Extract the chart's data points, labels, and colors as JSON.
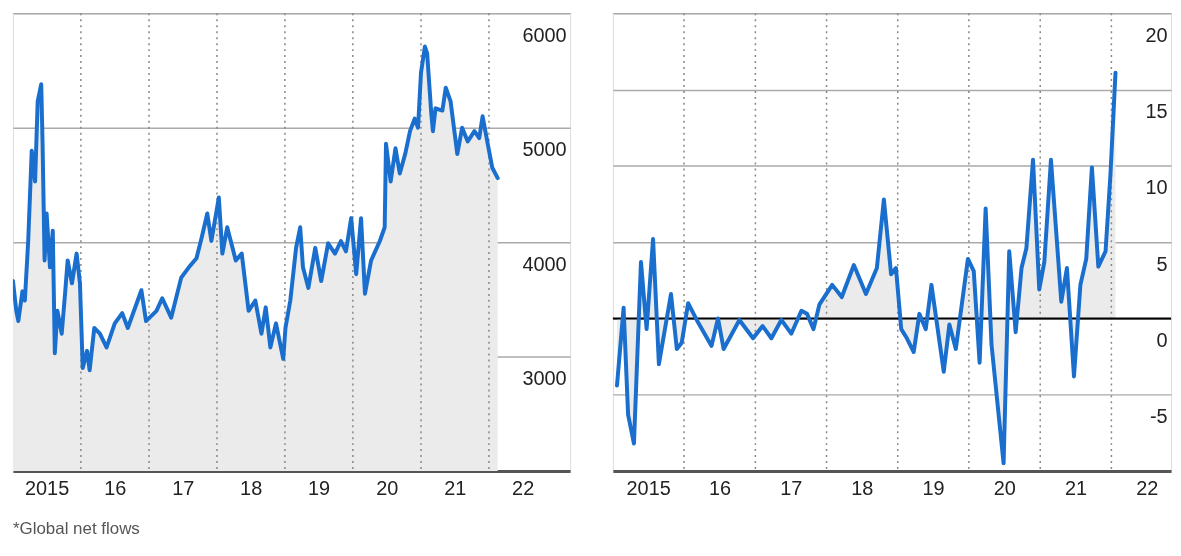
{
  "chart_data": [
    {
      "type": "area",
      "annotations": [
        "*Global net flows"
      ],
      "x": [
        "2015-01-01",
        "2015-01-19",
        "2015-01-30",
        "2015-02-21",
        "2015-03-06",
        "2015-03-24",
        "2015-04-12",
        "2015-04-30",
        "2015-05-14",
        "2015-06-02",
        "2015-06-09",
        "2015-06-20",
        "2015-07-01",
        "2015-07-19",
        "2015-08-03",
        "2015-08-14",
        "2015-08-28",
        "2015-09-20",
        "2015-10-08",
        "2015-10-22",
        "2015-11-14",
        "2015-12-09",
        "2015-12-27",
        "2016-01-11",
        "2016-02-03",
        "2016-02-17",
        "2016-03-13",
        "2016-04-12",
        "2016-05-18",
        "2016-07-01",
        "2016-08-10",
        "2016-09-09",
        "2016-11-21",
        "2016-12-16",
        "2017-02-10",
        "2017-03-13",
        "2017-04-30",
        "2017-06-23",
        "2017-08-03",
        "2017-09-13",
        "2017-10-11",
        "2017-11-10",
        "2017-12-02",
        "2018-01-11",
        "2018-01-30",
        "2018-02-25",
        "2018-04-12",
        "2018-05-14",
        "2018-06-20",
        "2018-07-26",
        "2018-08-28",
        "2018-09-20",
        "2018-10-15",
        "2018-11-14",
        "2018-12-23",
        "2019-01-04",
        "2019-01-30",
        "2019-03-02",
        "2019-03-24",
        "2019-04-08",
        "2019-05-07",
        "2019-06-13",
        "2019-07-15",
        "2019-08-21",
        "2019-09-27",
        "2019-10-29",
        "2019-11-25",
        "2019-12-23",
        "2020-01-19",
        "2020-02-14",
        "2020-03-06",
        "2020-04-08",
        "2020-05-25",
        "2020-06-20",
        "2020-06-27",
        "2020-07-22",
        "2020-08-17",
        "2020-09-09",
        "2020-10-08",
        "2020-11-03",
        "2020-11-28",
        "2020-12-16",
        "2021-01-01",
        "2021-01-22",
        "2021-02-03",
        "2021-02-25",
        "2021-03-06",
        "2021-03-20",
        "2021-04-26",
        "2021-05-14",
        "2021-06-09",
        "2021-07-15",
        "2021-08-10",
        "2021-09-09",
        "2021-10-15",
        "2021-11-10",
        "2021-11-28",
        "2021-12-23",
        "2022-01-19",
        "2022-02-17"
      ],
      "series": [
        {
          "color": "#1a6fce",
          "values": [
            3660,
            3400,
            3310,
            3570,
            3490,
            4010,
            4800,
            4530,
            5230,
            5380,
            4880,
            3840,
            4250,
            3780,
            4100,
            3030,
            3400,
            3200,
            3550,
            3840,
            3640,
            3900,
            3640,
            2900,
            3050,
            2880,
            3250,
            3200,
            3080,
            3290,
            3380,
            3250,
            3580,
            3310,
            3400,
            3510,
            3340,
            3690,
            3780,
            3860,
            4040,
            4250,
            4010,
            4390,
            3900,
            4130,
            3840,
            3900,
            3400,
            3490,
            3200,
            3430,
            3080,
            3290,
            2980,
            3250,
            3490,
            3950,
            4130,
            3780,
            3600,
            3950,
            3660,
            3990,
            3900,
            4010,
            3920,
            4210,
            3720,
            4210,
            3550,
            3840,
            4010,
            4130,
            4860,
            4530,
            4820,
            4600,
            4770,
            4970,
            5080,
            5000,
            5480,
            5710,
            5650,
            5130,
            4970,
            5170,
            5150,
            5350,
            5230,
            4770,
            5000,
            4880,
            4970,
            4910,
            5100,
            4880,
            4650,
            4560
          ]
        }
      ],
      "xlim": [
        "2015-01-01",
        "2023-03-13"
      ],
      "xticks": [
        {
          "value": "2015-07-01",
          "label": "2015"
        },
        {
          "value": "2016-07-01",
          "label": "16"
        },
        {
          "value": "2017-07-01",
          "label": "17"
        },
        {
          "value": "2018-07-01",
          "label": "18"
        },
        {
          "value": "2019-07-01",
          "label": "19"
        },
        {
          "value": "2020-07-01",
          "label": "20"
        },
        {
          "value": "2021-07-01",
          "label": "21"
        },
        {
          "value": "2022-07-01",
          "label": "22"
        }
      ],
      "ylim": [
        2000,
        6000
      ],
      "yticks": [
        3000,
        4000,
        5000,
        6000
      ],
      "grid": "y",
      "ref_lines": [
        {
          "axis": "x",
          "value": "2016-01-01",
          "color": "#888888",
          "line_style": "dotted"
        },
        {
          "axis": "x",
          "value": "2017-01-01",
          "color": "#888888",
          "line_style": "dotted"
        },
        {
          "axis": "x",
          "value": "2018-01-01",
          "color": "#888888",
          "line_style": "dotted"
        },
        {
          "axis": "x",
          "value": "2019-01-01",
          "color": "#888888",
          "line_style": "dotted"
        },
        {
          "axis": "x",
          "value": "2020-01-01",
          "color": "#888888",
          "line_style": "dotted"
        },
        {
          "axis": "x",
          "value": "2021-01-01",
          "color": "#888888",
          "line_style": "dotted"
        },
        {
          "axis": "x",
          "value": "2022-01-01",
          "color": "#888888",
          "line_style": "dotted"
        }
      ]
    },
    {
      "type": "area",
      "x": [
        "2015-01-22",
        "2015-02-25",
        "2015-03-20",
        "2015-04-19",
        "2015-05-25",
        "2015-06-23",
        "2015-07-26",
        "2015-08-25",
        "2015-10-26",
        "2015-11-25",
        "2015-12-20",
        "2016-01-22",
        "2016-03-06",
        "2016-05-21",
        "2016-06-23",
        "2016-07-22",
        "2016-10-11",
        "2016-12-20",
        "2017-02-07",
        "2017-03-24",
        "2017-05-14",
        "2017-07-04",
        "2017-08-25",
        "2017-09-23",
        "2017-10-26",
        "2017-11-25",
        "2018-01-30",
        "2018-03-20",
        "2018-05-21",
        "2018-07-22",
        "2018-09-16",
        "2018-10-22",
        "2018-11-28",
        "2018-12-23",
        "2019-01-19",
        "2019-02-17",
        "2019-03-24",
        "2019-04-22",
        "2019-05-25",
        "2019-06-23",
        "2019-08-25",
        "2019-09-23",
        "2019-10-26",
        "2019-12-27",
        "2020-01-26",
        "2020-02-25",
        "2020-03-27",
        "2020-04-26",
        "2020-06-27",
        "2020-07-26",
        "2020-08-28",
        "2020-09-27",
        "2020-10-22",
        "2020-11-25",
        "2020-12-27",
        "2021-01-22",
        "2021-02-25",
        "2021-04-19",
        "2021-05-18",
        "2021-06-23",
        "2021-07-26",
        "2021-08-25",
        "2021-09-23",
        "2021-10-26",
        "2021-12-02",
        "2021-12-27",
        "2022-01-22"
      ],
      "series": [
        {
          "color": "#1a6fce",
          "values": [
            -4.4,
            0.7,
            -6.3,
            -8.2,
            3.7,
            -0.7,
            5.2,
            -3.0,
            1.6,
            -2.0,
            -1.6,
            1.0,
            -0.1,
            -1.8,
            0.0,
            -2.0,
            -0.1,
            -1.3,
            -0.5,
            -1.3,
            -0.1,
            -1.0,
            0.5,
            0.3,
            -0.7,
            0.9,
            2.2,
            1.4,
            3.5,
            1.6,
            3.3,
            7.8,
            2.9,
            3.3,
            -0.7,
            -1.3,
            -2.2,
            0.3,
            -0.7,
            2.2,
            -3.5,
            -0.4,
            -2.0,
            3.9,
            3.1,
            -2.9,
            7.2,
            -1.7,
            -9.5,
            4.4,
            -0.9,
            3.3,
            4.6,
            10.4,
            1.9,
            3.7,
            10.4,
            1.1,
            3.3,
            -3.8,
            2.2,
            3.9,
            9.9,
            3.4,
            4.4,
            9.4,
            16.1
          ]
        }
      ],
      "xlim": [
        "2015-01-01",
        "2022-11-03"
      ],
      "xticks": [
        {
          "value": "2015-07-01",
          "label": "2015"
        },
        {
          "value": "2016-07-01",
          "label": "16"
        },
        {
          "value": "2017-07-01",
          "label": "17"
        },
        {
          "value": "2018-07-01",
          "label": "18"
        },
        {
          "value": "2019-07-01",
          "label": "19"
        },
        {
          "value": "2020-07-01",
          "label": "20"
        },
        {
          "value": "2021-07-01",
          "label": "21"
        },
        {
          "value": "2022-07-01",
          "label": "22"
        }
      ],
      "ylim": [
        -10,
        20
      ],
      "yticks": [
        -5,
        0,
        5,
        10,
        15,
        20
      ],
      "grid": "y",
      "ref_lines": [
        {
          "axis": "x",
          "value": "2016-01-01",
          "color": "#888888",
          "line_style": "dotted"
        },
        {
          "axis": "x",
          "value": "2017-01-01",
          "color": "#888888",
          "line_style": "dotted"
        },
        {
          "axis": "x",
          "value": "2018-01-01",
          "color": "#888888",
          "line_style": "dotted"
        },
        {
          "axis": "x",
          "value": "2019-01-01",
          "color": "#888888",
          "line_style": "dotted"
        },
        {
          "axis": "x",
          "value": "2020-01-01",
          "color": "#888888",
          "line_style": "dotted"
        },
        {
          "axis": "x",
          "value": "2021-01-01",
          "color": "#888888",
          "line_style": "dotted"
        },
        {
          "axis": "x",
          "value": "2022-01-01",
          "color": "#888888",
          "line_style": "dotted"
        },
        {
          "axis": "y",
          "value": 0,
          "color": "#000000",
          "line_style": "solid"
        }
      ]
    }
  ]
}
